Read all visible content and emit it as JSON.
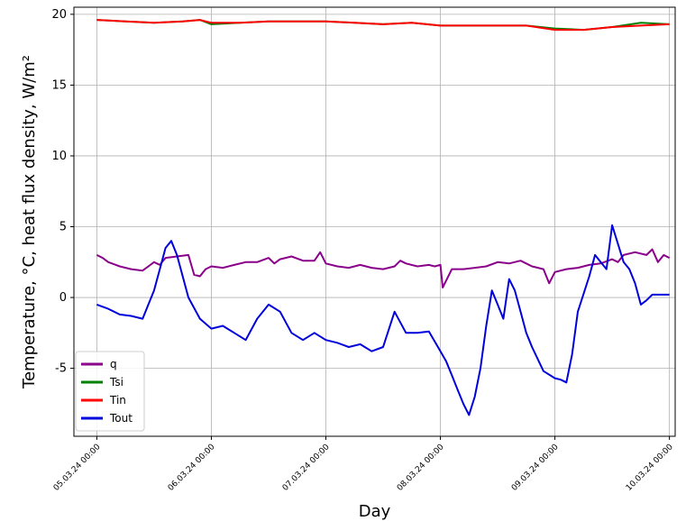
{
  "chart_data": {
    "type": "line",
    "xlabel": "Day",
    "ylabel": "Temperature, °C, heat flux density, W/m²",
    "xlim": [
      -0.2,
      5.05
    ],
    "ylim": [
      -9.8,
      20.5
    ],
    "yticks": [
      -5,
      0,
      5,
      10,
      15,
      20
    ],
    "xticks": [
      0,
      1,
      2,
      3,
      4,
      5
    ],
    "xtick_labels": [
      "05.03.24 00:00",
      "06.03.24 00:00",
      "07.03.24 00:00",
      "08.03.24 00:00",
      "09.03.24 00:00",
      "10.03.24 00:00"
    ],
    "grid": true,
    "legend_position": "lower-left",
    "colors": {
      "q": "#8b008b",
      "Tsi": "#008000",
      "Tin": "#ff0000",
      "Tout": "#0000dd"
    },
    "series": [
      {
        "name": "q",
        "x": [
          0,
          0.05,
          0.1,
          0.2,
          0.3,
          0.4,
          0.45,
          0.5,
          0.55,
          0.6,
          0.7,
          0.8,
          0.85,
          0.9,
          0.95,
          1.0,
          1.1,
          1.2,
          1.3,
          1.4,
          1.5,
          1.55,
          1.6,
          1.7,
          1.8,
          1.9,
          1.95,
          2.0,
          2.1,
          2.2,
          2.3,
          2.4,
          2.5,
          2.6,
          2.65,
          2.7,
          2.8,
          2.9,
          2.95,
          3.0,
          3.02,
          3.1,
          3.2,
          3.3,
          3.4,
          3.5,
          3.6,
          3.7,
          3.8,
          3.9,
          3.95,
          4.0,
          4.1,
          4.2,
          4.3,
          4.4,
          4.5,
          4.55,
          4.6,
          4.7,
          4.8,
          4.85,
          4.9,
          4.95,
          5.0
        ],
        "y": [
          3.0,
          2.8,
          2.5,
          2.2,
          2.0,
          1.9,
          2.2,
          2.5,
          2.3,
          2.8,
          2.9,
          3.0,
          1.6,
          1.5,
          2.0,
          2.2,
          2.1,
          2.3,
          2.5,
          2.5,
          2.8,
          2.4,
          2.7,
          2.9,
          2.6,
          2.6,
          3.2,
          2.4,
          2.2,
          2.1,
          2.3,
          2.1,
          2.0,
          2.2,
          2.6,
          2.4,
          2.2,
          2.3,
          2.2,
          2.3,
          0.7,
          2.0,
          2.0,
          2.1,
          2.2,
          2.5,
          2.4,
          2.6,
          2.2,
          2.0,
          1.0,
          1.8,
          2.0,
          2.1,
          2.3,
          2.4,
          2.7,
          2.5,
          3.0,
          3.2,
          3.0,
          3.4,
          2.5,
          3.0,
          2.8
        ]
      },
      {
        "name": "Tsi",
        "x": [
          0,
          0.25,
          0.5,
          0.75,
          0.9,
          1.0,
          1.25,
          1.5,
          1.75,
          2.0,
          2.25,
          2.5,
          2.75,
          3.0,
          3.25,
          3.5,
          3.75,
          4.0,
          4.25,
          4.5,
          4.75,
          5.0
        ],
        "y": [
          19.6,
          19.5,
          19.4,
          19.5,
          19.6,
          19.3,
          19.4,
          19.5,
          19.5,
          19.5,
          19.4,
          19.3,
          19.4,
          19.2,
          19.2,
          19.2,
          19.2,
          19.0,
          18.9,
          19.1,
          19.4,
          19.3
        ]
      },
      {
        "name": "Tin",
        "x": [
          0,
          0.25,
          0.5,
          0.75,
          0.9,
          1.0,
          1.25,
          1.5,
          1.75,
          2.0,
          2.25,
          2.5,
          2.75,
          3.0,
          3.25,
          3.5,
          3.75,
          4.0,
          4.25,
          4.5,
          4.75,
          5.0
        ],
        "y": [
          19.6,
          19.5,
          19.4,
          19.5,
          19.6,
          19.4,
          19.4,
          19.5,
          19.5,
          19.5,
          19.4,
          19.3,
          19.4,
          19.2,
          19.2,
          19.2,
          19.2,
          18.9,
          18.9,
          19.1,
          19.2,
          19.3
        ]
      },
      {
        "name": "Tout",
        "x": [
          0,
          0.1,
          0.2,
          0.3,
          0.4,
          0.5,
          0.55,
          0.6,
          0.65,
          0.7,
          0.8,
          0.9,
          1.0,
          1.1,
          1.2,
          1.3,
          1.4,
          1.5,
          1.6,
          1.7,
          1.8,
          1.9,
          2.0,
          2.1,
          2.2,
          2.3,
          2.4,
          2.5,
          2.6,
          2.7,
          2.8,
          2.9,
          3.0,
          3.05,
          3.1,
          3.15,
          3.2,
          3.25,
          3.3,
          3.35,
          3.4,
          3.45,
          3.5,
          3.55,
          3.6,
          3.65,
          3.7,
          3.75,
          3.8,
          3.9,
          4.0,
          4.05,
          4.1,
          4.15,
          4.2,
          4.3,
          4.35,
          4.4,
          4.45,
          4.5,
          4.6,
          4.65,
          4.7,
          4.75,
          4.8,
          4.85,
          4.9,
          4.95,
          5.0
        ],
        "y": [
          -0.5,
          -0.8,
          -1.2,
          -1.3,
          -1.5,
          0.5,
          2.0,
          3.5,
          4.0,
          3.0,
          0.0,
          -1.5,
          -2.2,
          -2.0,
          -2.5,
          -3.0,
          -1.5,
          -0.5,
          -1.0,
          -2.5,
          -3.0,
          -2.5,
          -3.0,
          -3.2,
          -3.5,
          -3.3,
          -3.8,
          -3.5,
          -1.0,
          -2.5,
          -2.5,
          -2.4,
          -3.8,
          -4.5,
          -5.5,
          -6.5,
          -7.5,
          -8.3,
          -7.0,
          -5.0,
          -2.0,
          0.5,
          -0.5,
          -1.5,
          1.3,
          0.5,
          -1.0,
          -2.5,
          -3.5,
          -5.2,
          -5.7,
          -5.8,
          -6.0,
          -4.0,
          -1.0,
          1.5,
          3.0,
          2.5,
          2.0,
          5.1,
          2.5,
          2.0,
          1.0,
          -0.5,
          -0.2,
          0.2,
          0.2,
          0.2,
          0.2
        ]
      }
    ]
  }
}
